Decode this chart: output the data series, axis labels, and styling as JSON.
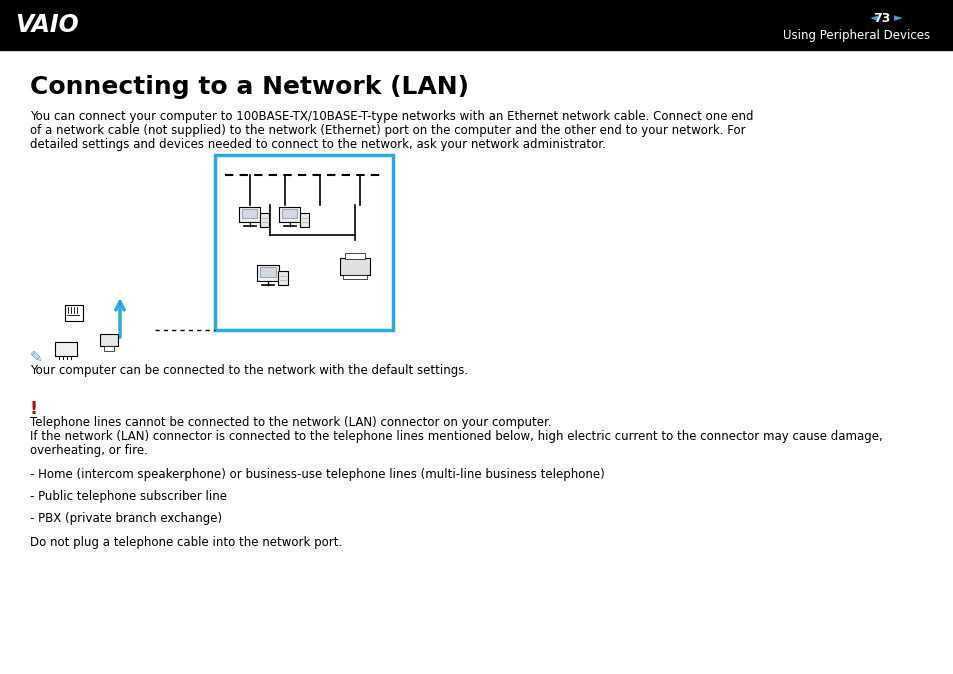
{
  "bg_color": "#ffffff",
  "header_bg": "#000000",
  "header_text_color": "#ffffff",
  "page_number": "73",
  "header_right_text": "Using Peripheral Devices",
  "title": "Connecting to a Network (LAN)",
  "body_text_lines": [
    "You can connect your computer to 100BASE-TX/10BASE-T-type networks with an Ethernet network cable. Connect one end",
    "of a network cable (not supplied) to the network (Ethernet) port on the computer and the other end to your network. For",
    "detailed settings and devices needed to connect to the network, ask your network administrator."
  ],
  "note_text": "Your computer can be connected to the network with the default settings.",
  "warning_text1": "Telephone lines cannot be connected to the network (LAN) connector on your computer.",
  "warning_text2a": "If the network (LAN) connector is connected to the telephone lines mentioned below, high electric current to the connector may cause damage,",
  "warning_text2b": "overheating, or fire.",
  "bullet1": "- Home (intercom speakerphone) or business-use telephone lines (multi-line business telephone)",
  "bullet2": "- Public telephone subscriber line",
  "bullet3": "- PBX (private branch exchange)",
  "final_text": "Do not plug a telephone cable into the network port.",
  "cyan_color": "#29abe2",
  "red_color": "#cc0000",
  "diagram_border_color": "#29abe2",
  "text_color": "#000000",
  "font_size_body": 8.5,
  "font_size_title": 18,
  "font_size_header": 8.5
}
